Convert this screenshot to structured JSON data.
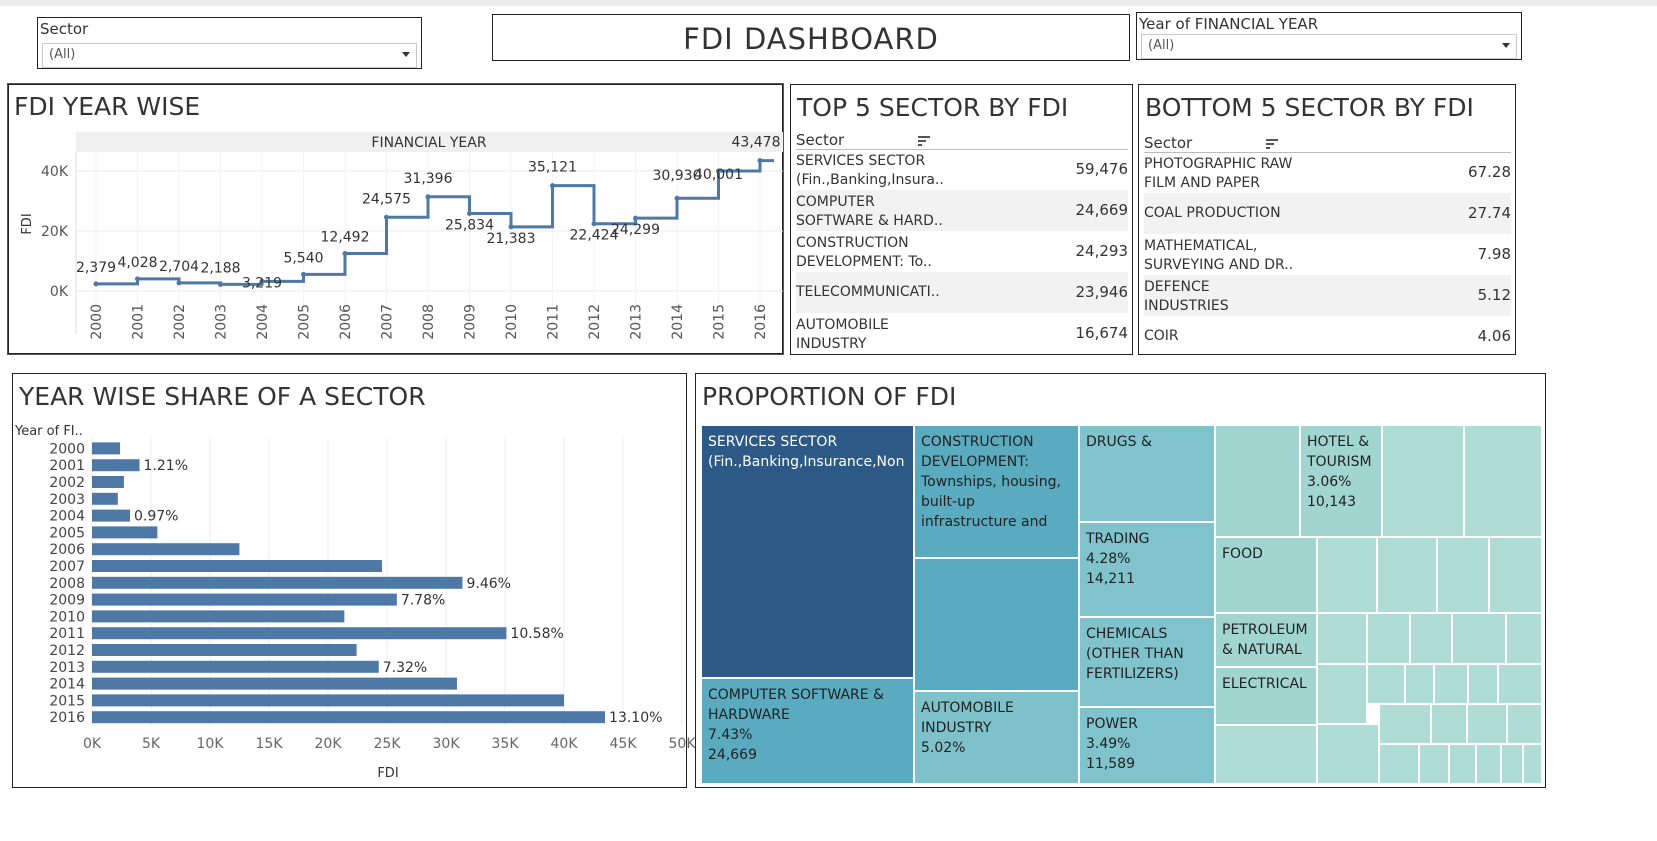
{
  "dashboard": {
    "title": "FDI DASHBOARD"
  },
  "filters": {
    "sector": {
      "label": "Sector",
      "value": "(All)"
    },
    "year": {
      "label": "Year of FINANCIAL YEAR",
      "value": "(All)"
    }
  },
  "colors": {
    "line": "#4e79a7",
    "bar": "#4e79a7",
    "tm_dark": "#2c5985",
    "tm_mid": "#5aabbf",
    "tm_light": "#a1d5cf"
  },
  "chart_data": [
    {
      "id": "year_wise",
      "type": "line",
      "title": "FDI  YEAR WISE",
      "header": "FINANCIAL YEAR",
      "ylabel": "FDI",
      "step": true,
      "ylim": [
        0,
        45000
      ],
      "yticks": [
        "0K",
        "20K",
        "40K"
      ],
      "x": [
        "2000",
        "2001",
        "2002",
        "2003",
        "2004",
        "2005",
        "2006",
        "2007",
        "2008",
        "2009",
        "2010",
        "2011",
        "2012",
        "2013",
        "2014",
        "2015",
        "2016"
      ],
      "values": [
        2379,
        4028,
        2704,
        2188,
        3219,
        5540,
        12492,
        24575,
        31396,
        25834,
        21383,
        35121,
        22424,
        24299,
        30930,
        40001,
        43478
      ],
      "labels": [
        "2,379",
        "4,028",
        "2,704",
        "2,188",
        "3,219",
        "5,540",
        "12,492",
        "24,575",
        "31,396",
        "25,834",
        "21,383",
        "35,121",
        "22,424",
        "24,299",
        "30,930",
        "40,001",
        "43,478"
      ]
    },
    {
      "id": "share",
      "type": "bar",
      "title": "YEAR WISE SHARE OF A SECTOR",
      "rowheader": "Year of FI..",
      "xlabel": "FDI",
      "xlim": [
        0,
        50000
      ],
      "xticks": [
        "0K",
        "5K",
        "10K",
        "15K",
        "20K",
        "25K",
        "30K",
        "35K",
        "40K",
        "45K",
        "50K"
      ],
      "categories": [
        "2000",
        "2001",
        "2002",
        "2003",
        "2004",
        "2005",
        "2006",
        "2007",
        "2008",
        "2009",
        "2010",
        "2011",
        "2012",
        "2013",
        "2014",
        "2015",
        "2016"
      ],
      "values": [
        2379,
        4028,
        2704,
        2188,
        3219,
        5540,
        12492,
        24575,
        31396,
        25834,
        21383,
        35121,
        22424,
        24299,
        30930,
        40001,
        43478
      ],
      "labels": [
        "",
        "1.21%",
        "",
        "",
        "0.97%",
        "",
        "",
        "",
        "9.46%",
        "7.78%",
        "",
        "10.58%",
        "",
        "7.32%",
        "",
        "",
        "13.10%"
      ]
    },
    {
      "id": "proportion",
      "type": "heatmap",
      "title": "PROPORTION OF FDI",
      "cells": [
        {
          "text": "SERVICES SECTOR\n(Fin.,Banking,Insurance,Non",
          "tone": "dark"
        },
        {
          "text": "COMPUTER SOFTWARE &\nHARDWARE\n7.43%\n24,669",
          "tone": "mid"
        },
        {
          "text": "CONSTRUCTION\nDEVELOPMENT:\nTownships, housing,\nbuilt-up\ninfrastructure and",
          "tone": "mid"
        },
        {
          "text": "",
          "tone": "mid"
        },
        {
          "text": "AUTOMOBILE\nINDUSTRY\n5.02%",
          "tone": "midlight"
        },
        {
          "text": "DRUGS &",
          "tone": "light1"
        },
        {
          "text": "TRADING\n4.28%\n14,211",
          "tone": "light1"
        },
        {
          "text": "CHEMICALS\n(OTHER THAN\nFERTILIZERS)",
          "tone": "light1"
        },
        {
          "text": "POWER\n3.49%\n11,589",
          "tone": "light1"
        },
        {
          "text": "HOTEL &\nTOURISM\n3.06%\n10,143",
          "tone": "light2"
        },
        {
          "text": "FOOD",
          "tone": "light2"
        },
        {
          "text": "PETROLEUM\n& NATURAL",
          "tone": "light2"
        },
        {
          "text": "ELECTRICAL",
          "tone": "light2"
        }
      ]
    }
  ],
  "top5": {
    "title": "TOP 5 SECTOR BY FDI",
    "column": "Sector",
    "rows": [
      {
        "name": "SERVICES SECTOR\n(Fin.,Banking,Insura..",
        "value": "59,476"
      },
      {
        "name": "COMPUTER\nSOFTWARE & HARD..",
        "value": "24,669"
      },
      {
        "name": "CONSTRUCTION\nDEVELOPMENT: To..",
        "value": "24,293"
      },
      {
        "name": "TELECOMMUNICATI..",
        "value": "23,946"
      },
      {
        "name": "AUTOMOBILE\nINDUSTRY",
        "value": "16,674"
      }
    ]
  },
  "bottom5": {
    "title": "BOTTOM 5 SECTOR BY FDI",
    "column": "Sector",
    "rows": [
      {
        "name": "PHOTOGRAPHIC RAW\nFILM AND PAPER",
        "value": "67.28"
      },
      {
        "name": "COAL PRODUCTION",
        "value": "27.74"
      },
      {
        "name": "MATHEMATICAL,\nSURVEYING AND DR..",
        "value": "7.98"
      },
      {
        "name": "DEFENCE\nINDUSTRIES",
        "value": "5.12"
      },
      {
        "name": "COIR",
        "value": "4.06"
      }
    ]
  }
}
